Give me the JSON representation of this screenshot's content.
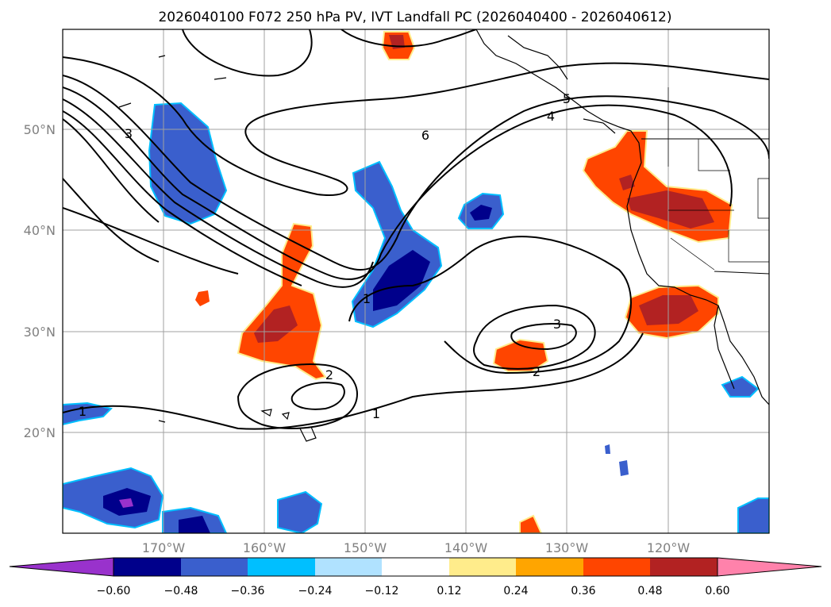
{
  "title": "2026040100 F072 250 hPa PV, IVT Landfall PC (2026040400 - 2026040612)",
  "lat_labels": [
    "20°N",
    "30°N",
    "40°N",
    "50°N"
  ],
  "lon_labels": [
    "170°W",
    "160°W",
    "150°W",
    "140°W",
    "130°W",
    "120°W"
  ],
  "contour_labels": [
    "1",
    "1",
    "1",
    "2",
    "2",
    "3",
    "3",
    "4",
    "5",
    "6"
  ],
  "colorbar": {
    "ticks": [
      "−0.60",
      "−0.48",
      "−0.36",
      "−0.24",
      "−0.12",
      "0.12",
      "0.24",
      "0.36",
      "0.48",
      "0.60"
    ],
    "colors": [
      "#9932cc",
      "#00008b",
      "#3a5fcd",
      "#00bfff",
      "#b0e2ff",
      "#ffffff",
      "#ffec8b",
      "#ffa500",
      "#ff4500",
      "#b22222",
      "#ff82ab"
    ]
  }
}
